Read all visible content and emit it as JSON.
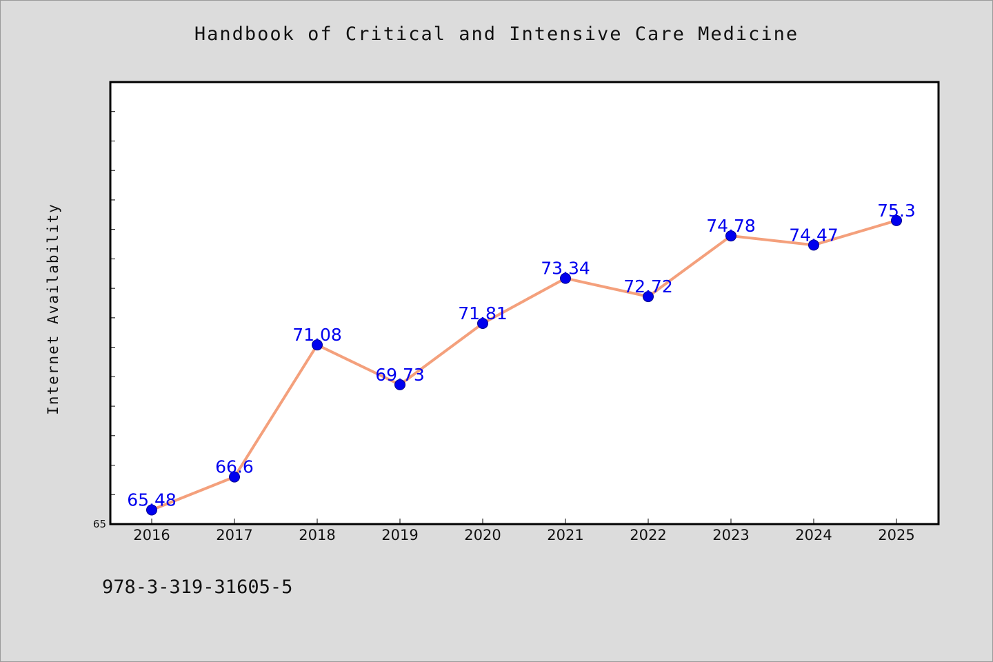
{
  "chart_data": {
    "type": "line",
    "title": "Handbook of Critical and Intensive Care Medicine",
    "xlabel": "",
    "ylabel": "Internet Availability",
    "x": [
      "2016",
      "2017",
      "2018",
      "2019",
      "2020",
      "2021",
      "2022",
      "2023",
      "2024",
      "2025"
    ],
    "series": [
      {
        "values": [
          65.48,
          66.6,
          71.08,
          69.73,
          71.81,
          73.34,
          72.72,
          74.78,
          74.47,
          75.3
        ],
        "labels": [
          "65.48",
          "66.6",
          "71.08",
          "69.73",
          "71.81",
          "73.34",
          "72.72",
          "74.78",
          "74.47",
          "75.3"
        ]
      }
    ],
    "ylim": [
      65,
      80
    ],
    "y_tick_labels": [
      "65"
    ],
    "grid": false,
    "line_color": "#f4a07c",
    "marker_color": "#0000ee",
    "label_color": "#0000ee",
    "annotation": "978-3-319-31605-5"
  }
}
